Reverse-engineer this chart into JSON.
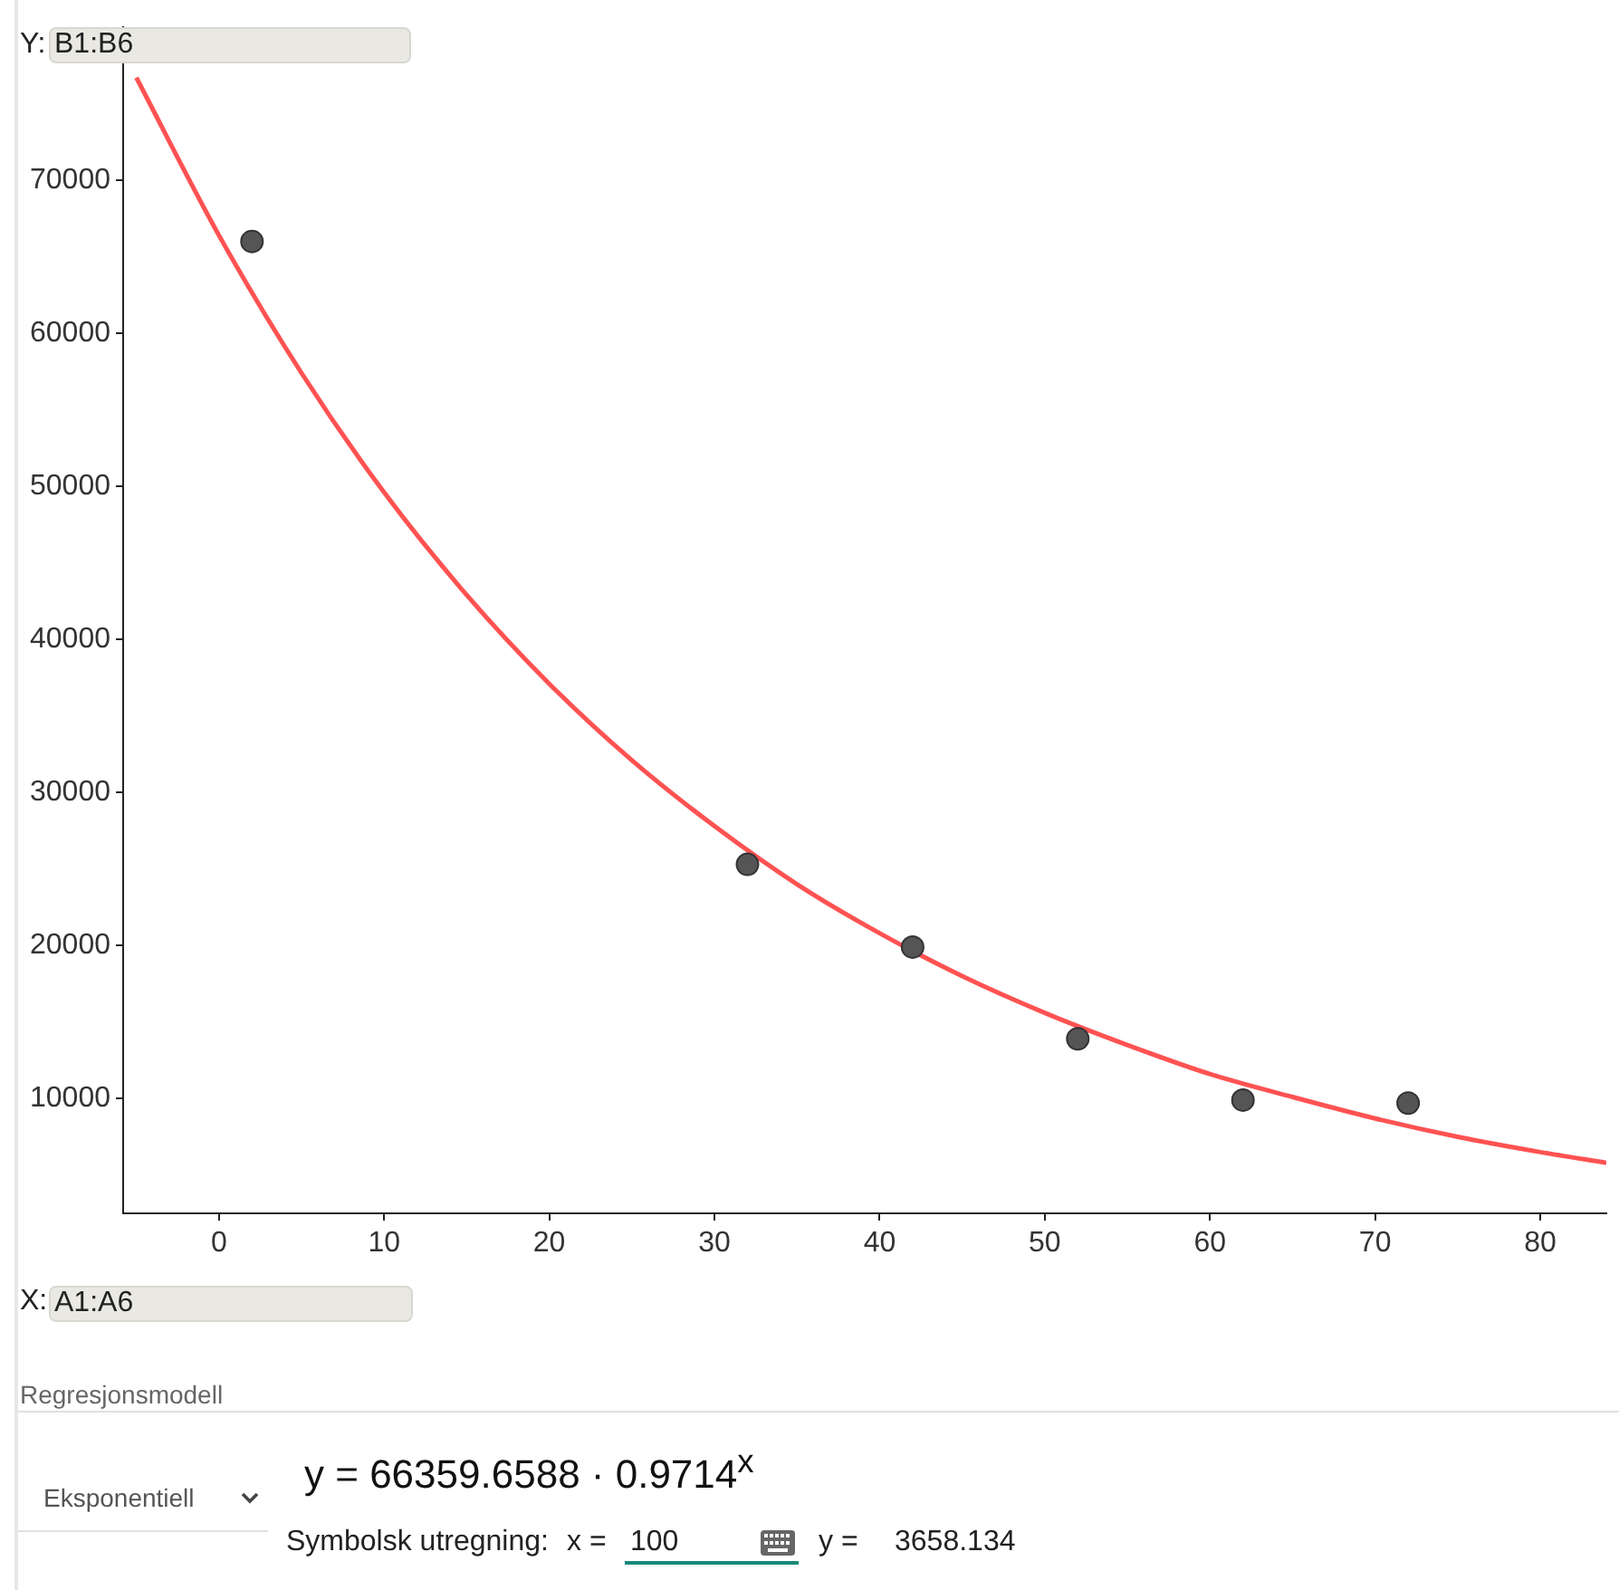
{
  "chart_data": {
    "type": "scatter",
    "x": [
      2,
      32,
      42,
      52,
      62,
      72
    ],
    "series": [
      {
        "type": "scatter",
        "color": "#555555",
        "values": [
          66000,
          25300,
          19900,
          13900,
          9900,
          9700
        ]
      },
      {
        "type": "line",
        "marker": "none",
        "color": "#ff5252",
        "x": [
          -5,
          0,
          5,
          10,
          15,
          20,
          25,
          30,
          35,
          40,
          45,
          50,
          55,
          60,
          65,
          70,
          75,
          80,
          84
        ],
        "values": [
          76700,
          66400,
          57400,
          49600,
          42900,
          37100,
          32100,
          27800,
          24000,
          20800,
          18000,
          15600,
          13500,
          11600,
          10100,
          8700,
          7500,
          6500,
          5800
        ]
      }
    ],
    "xlim": [
      -5.8,
      84
    ],
    "xticks": [
      0,
      10,
      20,
      30,
      40,
      50,
      60,
      70,
      80
    ],
    "ylim": [
      2500,
      80000
    ],
    "yticks": [
      10000,
      20000,
      30000,
      40000,
      50000,
      60000,
      70000
    ],
    "grid": false,
    "legend": false,
    "marker": "circle",
    "annotations": [
      "Y:",
      "B1:B6",
      "X:",
      "A1:A6",
      "Regresjonsmodell",
      "Eksponentiell",
      "y = 66359.6588 · 0.9714$^{x}$",
      "Symbolsk utregning:",
      "x =",
      "100",
      "y =",
      "3658.134"
    ]
  }
}
